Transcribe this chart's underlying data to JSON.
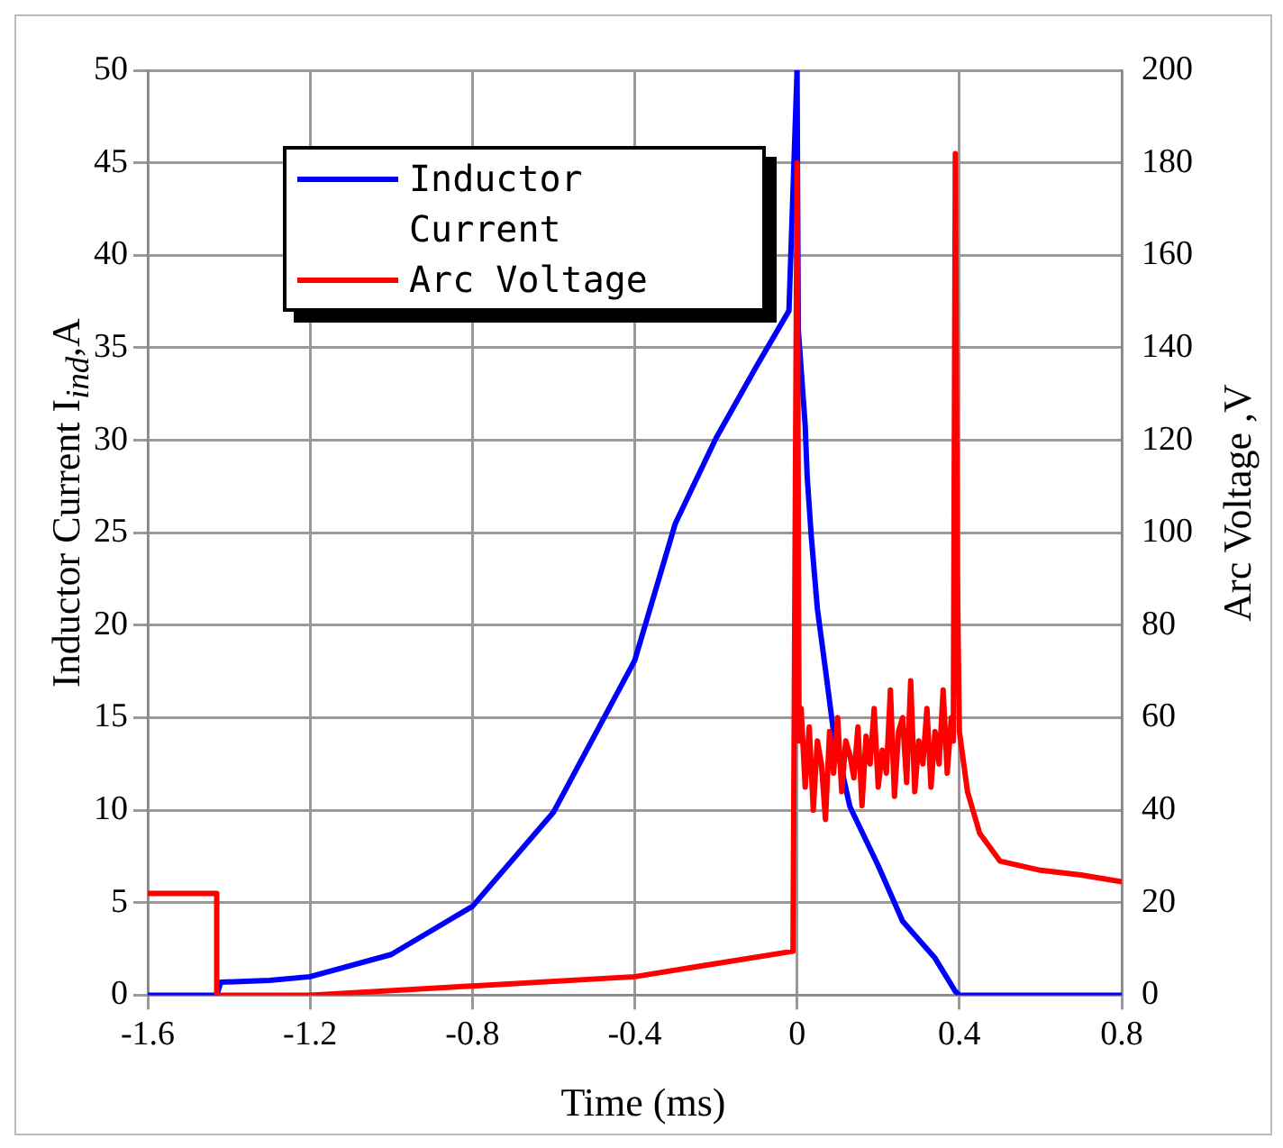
{
  "chart_data": {
    "type": "line",
    "xlabel": "Time (ms)",
    "ylabel": "Inductor Current I$_{ind}$,A",
    "y2label": "Arc Voltage ,V",
    "xlim": [
      -1.6,
      0.8
    ],
    "xticks": [
      -1.6,
      -1.2,
      -0.8,
      -0.4,
      0,
      0.4,
      0.8
    ],
    "ylim": [
      0,
      50
    ],
    "yticks": [
      0,
      5,
      10,
      15,
      20,
      25,
      30,
      35,
      40,
      45,
      50
    ],
    "y2lim": [
      0,
      200
    ],
    "y2ticks": [
      0,
      20,
      40,
      60,
      80,
      100,
      120,
      140,
      160,
      180,
      200
    ],
    "grid": true,
    "legend": "top left",
    "marker": "none",
    "line_style": "solid",
    "series": [
      {
        "name": "Inductor Current",
        "color": "#0000ff",
        "x": [
          -1.6,
          -1.43,
          -1.42,
          -1.3,
          -1.2,
          -1.0,
          -0.8,
          -0.6,
          -0.4,
          -0.3,
          -0.2,
          -0.1,
          -0.02,
          0,
          0.003,
          0.02,
          0.025,
          0.035,
          0.05,
          0.07,
          0.09,
          0.13,
          0.2,
          0.26,
          0.34,
          0.39,
          0.4,
          0.6,
          0.8
        ],
        "values": [
          0,
          0,
          0.7,
          0.8,
          1,
          2.2,
          4.8,
          9.9,
          18.1,
          25.5,
          30.1,
          34,
          37,
          50,
          36,
          30.8,
          28,
          24.8,
          20.9,
          17.6,
          14.2,
          10.2,
          7,
          4,
          2,
          0.2,
          0,
          0,
          0
        ]
      },
      {
        "name": "Arc Voltage",
        "color": "#ff0000",
        "axis": "y2",
        "x": [
          -1.6,
          -1.43,
          -1.43,
          -1.2,
          -0.8,
          -0.4,
          -0.01,
          0,
          0.005,
          0.01,
          0.02,
          0.03,
          0.04,
          0.05,
          0.06,
          0.07,
          0.08,
          0.09,
          0.1,
          0.11,
          0.12,
          0.13,
          0.14,
          0.15,
          0.16,
          0.17,
          0.18,
          0.19,
          0.2,
          0.21,
          0.22,
          0.23,
          0.24,
          0.25,
          0.26,
          0.27,
          0.28,
          0.29,
          0.3,
          0.31,
          0.32,
          0.33,
          0.34,
          0.35,
          0.36,
          0.37,
          0.38,
          0.385,
          0.39,
          0.395,
          0.4,
          0.42,
          0.45,
          0.5,
          0.6,
          0.7,
          0.8
        ],
        "values": [
          22,
          22,
          0,
          0,
          2,
          4,
          9.5,
          180,
          55,
          62,
          45,
          58,
          40,
          55,
          50,
          38,
          57,
          48,
          60,
          44,
          55,
          52,
          47,
          58,
          41,
          56,
          50,
          62,
          45,
          53,
          48,
          66,
          43,
          57,
          60,
          46,
          68,
          44,
          55,
          50,
          62,
          45,
          57,
          50,
          66,
          48,
          60,
          55,
          182,
          90,
          57,
          44,
          35,
          29,
          27,
          26,
          24.5
        ]
      }
    ]
  }
}
